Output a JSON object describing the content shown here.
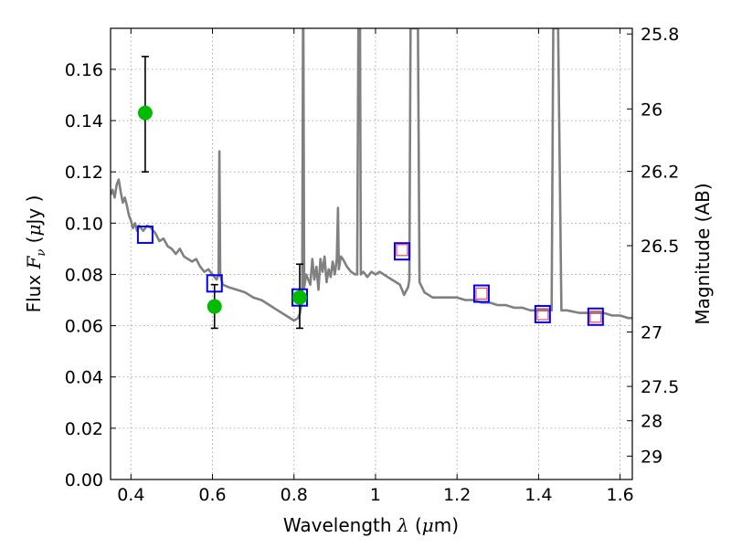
{
  "chart_data": {
    "type": "scatter",
    "xlabel_prefix": "Wavelength",
    "xlabel_symbol": "λ",
    "xlabel_unit_open": "(",
    "xlabel_unit_mu": "μ",
    "xlabel_unit_rest": "m)",
    "ylabel_prefix": "Flux",
    "ylabel_symbol": "F",
    "ylabel_subscript": "ν",
    "ylabel_unit_open": "(",
    "ylabel_unit_mu": "μ",
    "ylabel_unit_rest": "Jy )",
    "y2label": "Magnitude (AB)",
    "xlim": [
      0.35,
      1.63
    ],
    "ylim": [
      0.0,
      0.176
    ],
    "grid": true,
    "x_ticks": [
      {
        "v": 0.4,
        "label": "0.4"
      },
      {
        "v": 0.6,
        "label": "0.6"
      },
      {
        "v": 0.8,
        "label": "0.8"
      },
      {
        "v": 1.0,
        "label": "1"
      },
      {
        "v": 1.2,
        "label": "1.2"
      },
      {
        "v": 1.4,
        "label": "1.4"
      },
      {
        "v": 1.6,
        "label": "1.6"
      }
    ],
    "y_ticks": [
      {
        "v": 0.0,
        "label": "0.00"
      },
      {
        "v": 0.02,
        "label": "0.02"
      },
      {
        "v": 0.04,
        "label": "0.04"
      },
      {
        "v": 0.06,
        "label": "0.06"
      },
      {
        "v": 0.08,
        "label": "0.08"
      },
      {
        "v": 0.1,
        "label": "0.10"
      },
      {
        "v": 0.12,
        "label": "0.12"
      },
      {
        "v": 0.14,
        "label": "0.14"
      },
      {
        "v": 0.16,
        "label": "0.16"
      }
    ],
    "mag_ticks": [
      {
        "mag": 25.8,
        "label": "25.8"
      },
      {
        "mag": 26.0,
        "label": "26"
      },
      {
        "mag": 26.2,
        "label": "26.2"
      },
      {
        "mag": 26.5,
        "label": "26.5"
      },
      {
        "mag": 27.0,
        "label": "27"
      },
      {
        "mag": 27.5,
        "label": "27.5"
      },
      {
        "mag": 28.0,
        "label": "28"
      },
      {
        "mag": 29.0,
        "label": "29"
      }
    ],
    "template_spectrum": {
      "color": "#808080",
      "points": [
        [
          0.35,
          0.111
        ],
        [
          0.355,
          0.113
        ],
        [
          0.36,
          0.11
        ],
        [
          0.365,
          0.115
        ],
        [
          0.37,
          0.117
        ],
        [
          0.375,
          0.112
        ],
        [
          0.38,
          0.108
        ],
        [
          0.385,
          0.11
        ],
        [
          0.39,
          0.107
        ],
        [
          0.395,
          0.103
        ],
        [
          0.4,
          0.101
        ],
        [
          0.405,
          0.098
        ],
        [
          0.41,
          0.1
        ],
        [
          0.415,
          0.097
        ],
        [
          0.42,
          0.099
        ],
        [
          0.425,
          0.098
        ],
        [
          0.43,
          0.097
        ],
        [
          0.44,
          0.099
        ],
        [
          0.45,
          0.098
        ],
        [
          0.46,
          0.096
        ],
        [
          0.47,
          0.093
        ],
        [
          0.48,
          0.094
        ],
        [
          0.49,
          0.091
        ],
        [
          0.5,
          0.09
        ],
        [
          0.51,
          0.088
        ],
        [
          0.52,
          0.09
        ],
        [
          0.53,
          0.087
        ],
        [
          0.54,
          0.086
        ],
        [
          0.55,
          0.085
        ],
        [
          0.56,
          0.086
        ],
        [
          0.57,
          0.083
        ],
        [
          0.58,
          0.081
        ],
        [
          0.59,
          0.082
        ],
        [
          0.6,
          0.08
        ],
        [
          0.605,
          0.079
        ],
        [
          0.61,
          0.078
        ],
        [
          0.615,
          0.08
        ],
        [
          0.617,
          0.128
        ],
        [
          0.619,
          0.08
        ],
        [
          0.625,
          0.076
        ],
        [
          0.64,
          0.075
        ],
        [
          0.66,
          0.074
        ],
        [
          0.68,
          0.073
        ],
        [
          0.7,
          0.071
        ],
        [
          0.72,
          0.07
        ],
        [
          0.74,
          0.068
        ],
        [
          0.76,
          0.066
        ],
        [
          0.78,
          0.064
        ],
        [
          0.8,
          0.062
        ],
        [
          0.81,
          0.063
        ],
        [
          0.815,
          0.065
        ],
        [
          0.82,
          0.07
        ],
        [
          0.822,
          0.176
        ],
        [
          0.823,
          0.176
        ],
        [
          0.825,
          0.075
        ],
        [
          0.83,
          0.08
        ],
        [
          0.84,
          0.076
        ],
        [
          0.845,
          0.086
        ],
        [
          0.85,
          0.078
        ],
        [
          0.855,
          0.083
        ],
        [
          0.86,
          0.074
        ],
        [
          0.865,
          0.086
        ],
        [
          0.87,
          0.081
        ],
        [
          0.875,
          0.087
        ],
        [
          0.88,
          0.077
        ],
        [
          0.885,
          0.082
        ],
        [
          0.89,
          0.079
        ],
        [
          0.895,
          0.085
        ],
        [
          0.9,
          0.08
        ],
        [
          0.905,
          0.086
        ],
        [
          0.908,
          0.106
        ],
        [
          0.91,
          0.082
        ],
        [
          0.915,
          0.087
        ],
        [
          0.92,
          0.086
        ],
        [
          0.93,
          0.083
        ],
        [
          0.94,
          0.081
        ],
        [
          0.95,
          0.08
        ],
        [
          0.955,
          0.08
        ],
        [
          0.958,
          0.176
        ],
        [
          0.962,
          0.176
        ],
        [
          0.964,
          0.08
        ],
        [
          0.97,
          0.081
        ],
        [
          0.98,
          0.079
        ],
        [
          0.99,
          0.081
        ],
        [
          1.0,
          0.08
        ],
        [
          1.01,
          0.081
        ],
        [
          1.02,
          0.08
        ],
        [
          1.03,
          0.079
        ],
        [
          1.04,
          0.078
        ],
        [
          1.05,
          0.077
        ],
        [
          1.06,
          0.076
        ],
        [
          1.065,
          0.074
        ],
        [
          1.07,
          0.072
        ],
        [
          1.08,
          0.075
        ],
        [
          1.083,
          0.078
        ],
        [
          1.086,
          0.176
        ],
        [
          1.104,
          0.176
        ],
        [
          1.108,
          0.077
        ],
        [
          1.12,
          0.073
        ],
        [
          1.14,
          0.071
        ],
        [
          1.16,
          0.071
        ],
        [
          1.18,
          0.071
        ],
        [
          1.2,
          0.071
        ],
        [
          1.22,
          0.07
        ],
        [
          1.24,
          0.07
        ],
        [
          1.26,
          0.069
        ],
        [
          1.28,
          0.069
        ],
        [
          1.3,
          0.068
        ],
        [
          1.32,
          0.068
        ],
        [
          1.34,
          0.067
        ],
        [
          1.36,
          0.067
        ],
        [
          1.38,
          0.066
        ],
        [
          1.4,
          0.066
        ],
        [
          1.42,
          0.066
        ],
        [
          1.432,
          0.066
        ],
        [
          1.436,
          0.176
        ],
        [
          1.448,
          0.176
        ],
        [
          1.456,
          0.066
        ],
        [
          1.47,
          0.066
        ],
        [
          1.5,
          0.065
        ],
        [
          1.52,
          0.065
        ],
        [
          1.54,
          0.065
        ],
        [
          1.56,
          0.065
        ],
        [
          1.58,
          0.064
        ],
        [
          1.6,
          0.064
        ],
        [
          1.62,
          0.063
        ],
        [
          1.63,
          0.063
        ]
      ]
    },
    "observed_points": {
      "color": "#00bb00",
      "points": [
        {
          "x": 0.435,
          "y": 0.143,
          "yerr_low": 0.12,
          "yerr_high": 0.165
        },
        {
          "x": 0.605,
          "y": 0.0675,
          "yerr_low": 0.059,
          "yerr_high": 0.076
        },
        {
          "x": 0.814,
          "y": 0.071,
          "yerr_low": 0.059,
          "yerr_high": 0.084
        }
      ]
    },
    "model_blue_squares": {
      "color": "#0000ff",
      "points": [
        {
          "x": 0.435,
          "y": 0.0955
        },
        {
          "x": 0.605,
          "y": 0.0765
        },
        {
          "x": 0.814,
          "y": 0.071
        },
        {
          "x": 1.065,
          "y": 0.089
        },
        {
          "x": 1.26,
          "y": 0.0725
        },
        {
          "x": 1.41,
          "y": 0.0645
        },
        {
          "x": 1.54,
          "y": 0.0635
        }
      ]
    },
    "model_red_squares": {
      "color": "#ff4444",
      "points": [
        {
          "x": 1.065,
          "y": 0.0895
        },
        {
          "x": 1.26,
          "y": 0.0725
        },
        {
          "x": 1.41,
          "y": 0.0645
        },
        {
          "x": 1.54,
          "y": 0.0635
        }
      ]
    }
  }
}
